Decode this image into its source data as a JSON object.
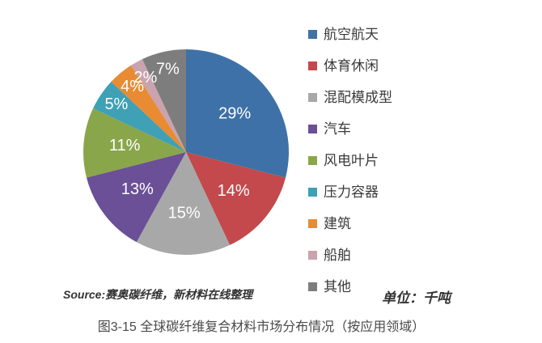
{
  "chart_data": {
    "type": "pie",
    "categories": [
      "航空航天",
      "体育休闲",
      "混配模成型",
      "汽车",
      "风电叶片",
      "压力容器",
      "建筑",
      "船舶",
      "其他"
    ],
    "values": [
      29,
      14,
      15,
      13,
      11,
      5,
      4,
      2,
      7
    ],
    "labels": [
      "29%",
      "14%",
      "15%",
      "13%",
      "11%",
      "5%",
      "4%",
      "2%",
      "7%"
    ],
    "colors": [
      "#3E71A7",
      "#C3494C",
      "#A8A8A8",
      "#6B4F97",
      "#8AA64A",
      "#3FA0B6",
      "#E88B33",
      "#C9A3AE",
      "#7D7D7D"
    ],
    "start_angle_deg": 0,
    "direction": "clockwise",
    "legend_position": "right",
    "label_color": "#FFFFFF",
    "title": ""
  },
  "source_note": "Source:赛奥碳纤维，新材料在线整理",
  "unit_note": "单位：千吨",
  "caption": "图3-15 全球碳纤维复合材料市场分布情况（按应用领域）"
}
